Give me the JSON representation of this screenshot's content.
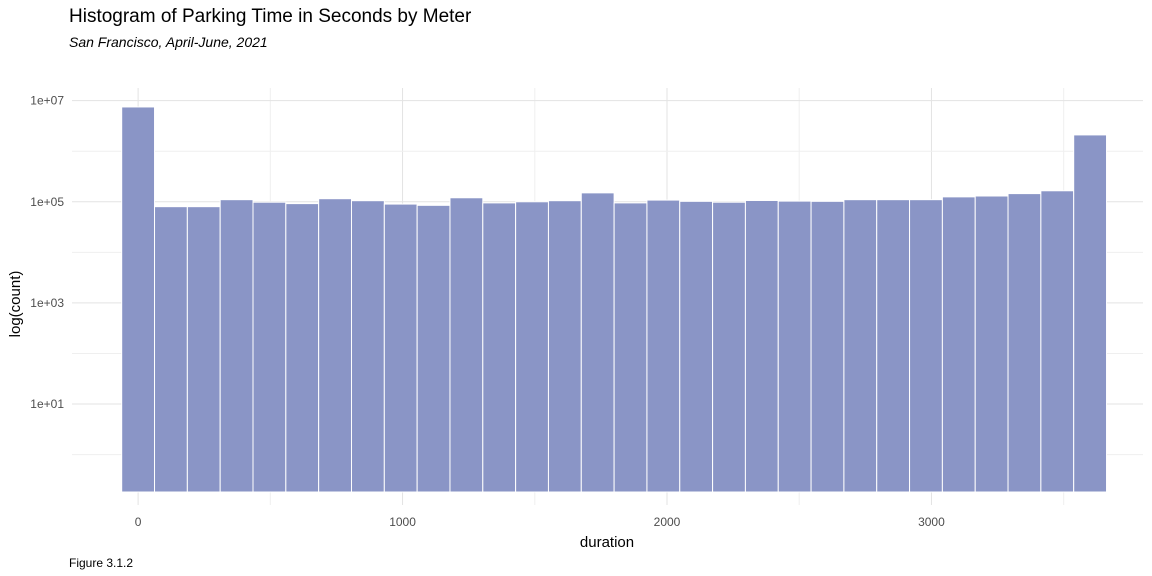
{
  "chart_data": {
    "type": "bar",
    "title": "Histogram of Parking Time in Seconds by Meter",
    "subtitle": "San Francisco, April-June, 2021",
    "caption": "Figure 3.1.2",
    "xlabel": "duration",
    "ylabel": "log(count)",
    "y_scale": "log10",
    "xlim": [
      -250,
      3800
    ],
    "ylim_log10": [
      -0.997,
      7.25
    ],
    "x_ticks": [
      0,
      1000,
      2000,
      3000
    ],
    "x_tick_labels": [
      "0",
      "1000",
      "2000",
      "3000"
    ],
    "y_ticks": [
      10,
      1000,
      100000,
      10000000
    ],
    "y_tick_labels": [
      "1e+01",
      "1e+03",
      "1e+05",
      "1e+07"
    ],
    "grid": true,
    "bar_color": "#8a95c6",
    "bin_width": 124.14,
    "bin_centers": [
      0,
      124.14,
      248.28,
      372.41,
      496.55,
      620.69,
      744.83,
      868.97,
      993.1,
      1117.24,
      1241.38,
      1365.52,
      1489.66,
      1613.79,
      1737.93,
      1862.07,
      1986.21,
      2110.34,
      2234.48,
      2358.62,
      2482.76,
      2606.9,
      2731.03,
      2855.17,
      2979.31,
      3103.45,
      3227.59,
      3351.72,
      3475.86,
      3600
    ],
    "counts": [
      7500000,
      80000,
      80000,
      110000,
      98000,
      92000,
      115000,
      105000,
      90000,
      85000,
      120000,
      95000,
      100000,
      105000,
      150000,
      95000,
      108000,
      102000,
      98000,
      106000,
      103000,
      102000,
      110000,
      110000,
      110000,
      125000,
      130000,
      145000,
      165000,
      2100000
    ]
  }
}
